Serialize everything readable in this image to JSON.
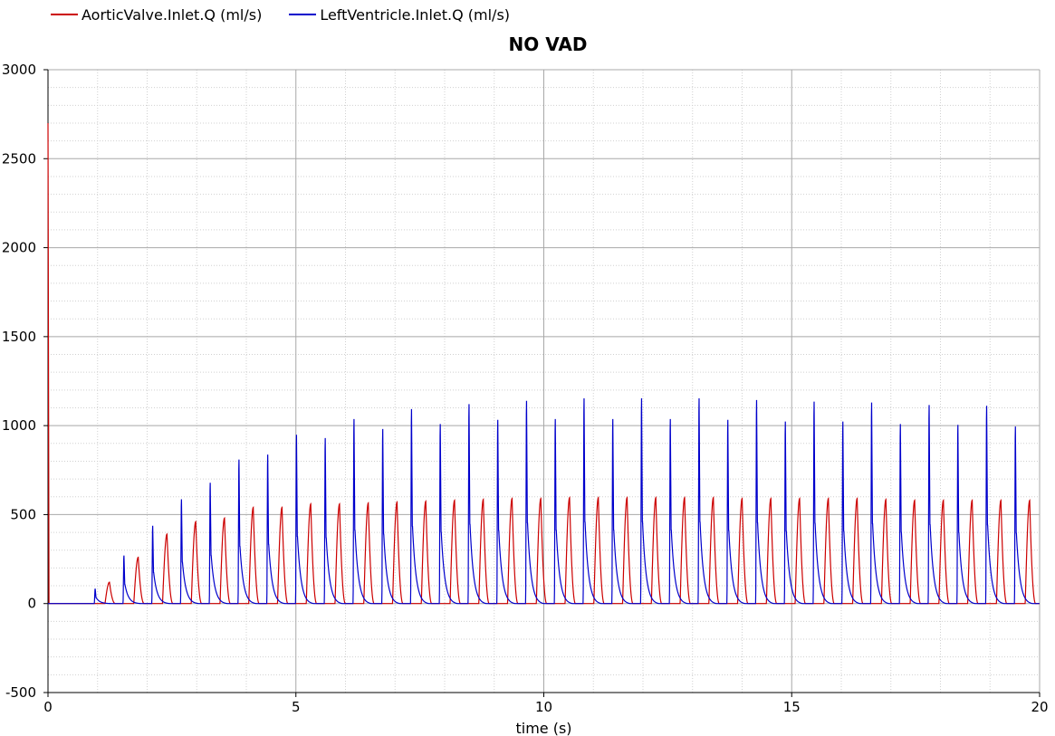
{
  "legend": [
    {
      "label": "AorticValve.Inlet.Q (ml/s)",
      "color": "#cc0000"
    },
    {
      "label": "LeftVentricle.Inlet.Q (ml/s)",
      "color": "#0000cc"
    }
  ],
  "chart_data": {
    "type": "line",
    "title": "NO VAD",
    "xlabel": "time (s)",
    "ylabel": "",
    "xlim": [
      0,
      20
    ],
    "ylim": [
      -500,
      3000
    ],
    "xticks": [
      "0",
      "5",
      "10",
      "15",
      "20"
    ],
    "yticks": [
      "-500",
      "0",
      "500",
      "1000",
      "1500",
      "2000",
      "2500",
      "3000"
    ],
    "grid": true,
    "legend_position": "top-left",
    "series": [
      {
        "name": "AorticValve.Inlet.Q (ml/s)",
        "color": "#cc0000",
        "initial_spike": 2700,
        "peak_times": [
          1.24,
          1.82,
          2.4,
          2.98,
          3.56,
          4.14,
          4.72,
          5.3,
          5.88,
          6.46,
          7.04,
          7.62,
          8.2,
          8.78,
          9.36,
          9.94,
          10.52,
          11.1,
          11.68,
          12.26,
          12.84,
          13.42,
          14.0,
          14.58,
          15.16,
          15.74,
          16.32,
          16.9,
          17.48,
          18.06,
          18.64,
          19.22,
          19.8
        ],
        "peak_values": [
          120,
          260,
          390,
          460,
          480,
          540,
          540,
          560,
          560,
          565,
          570,
          575,
          580,
          585,
          590,
          590,
          595,
          595,
          595,
          595,
          595,
          595,
          590,
          590,
          590,
          590,
          590,
          585,
          580,
          580,
          580,
          580,
          580
        ]
      },
      {
        "name": "LeftVentricle.Inlet.Q (ml/s)",
        "color": "#0000cc",
        "peak_times": [
          0.95,
          1.53,
          2.11,
          2.69,
          3.27,
          3.85,
          4.43,
          5.01,
          5.59,
          6.17,
          6.75,
          7.33,
          7.91,
          8.49,
          9.07,
          9.65,
          10.23,
          10.81,
          11.39,
          11.97,
          12.55,
          13.13,
          13.71,
          14.29,
          14.87,
          15.45,
          16.03,
          16.61,
          17.19,
          17.77,
          18.35,
          18.93,
          19.51
        ],
        "peak_values": [
          90,
          290,
          470,
          630,
          730,
          870,
          900,
          1020,
          1000,
          1115,
          1055,
          1175,
          1085,
          1205,
          1110,
          1225,
          1115,
          1240,
          1115,
          1240,
          1115,
          1240,
          1110,
          1230,
          1100,
          1220,
          1100,
          1215,
          1085,
          1200,
          1080,
          1195,
          1070
        ]
      }
    ]
  }
}
